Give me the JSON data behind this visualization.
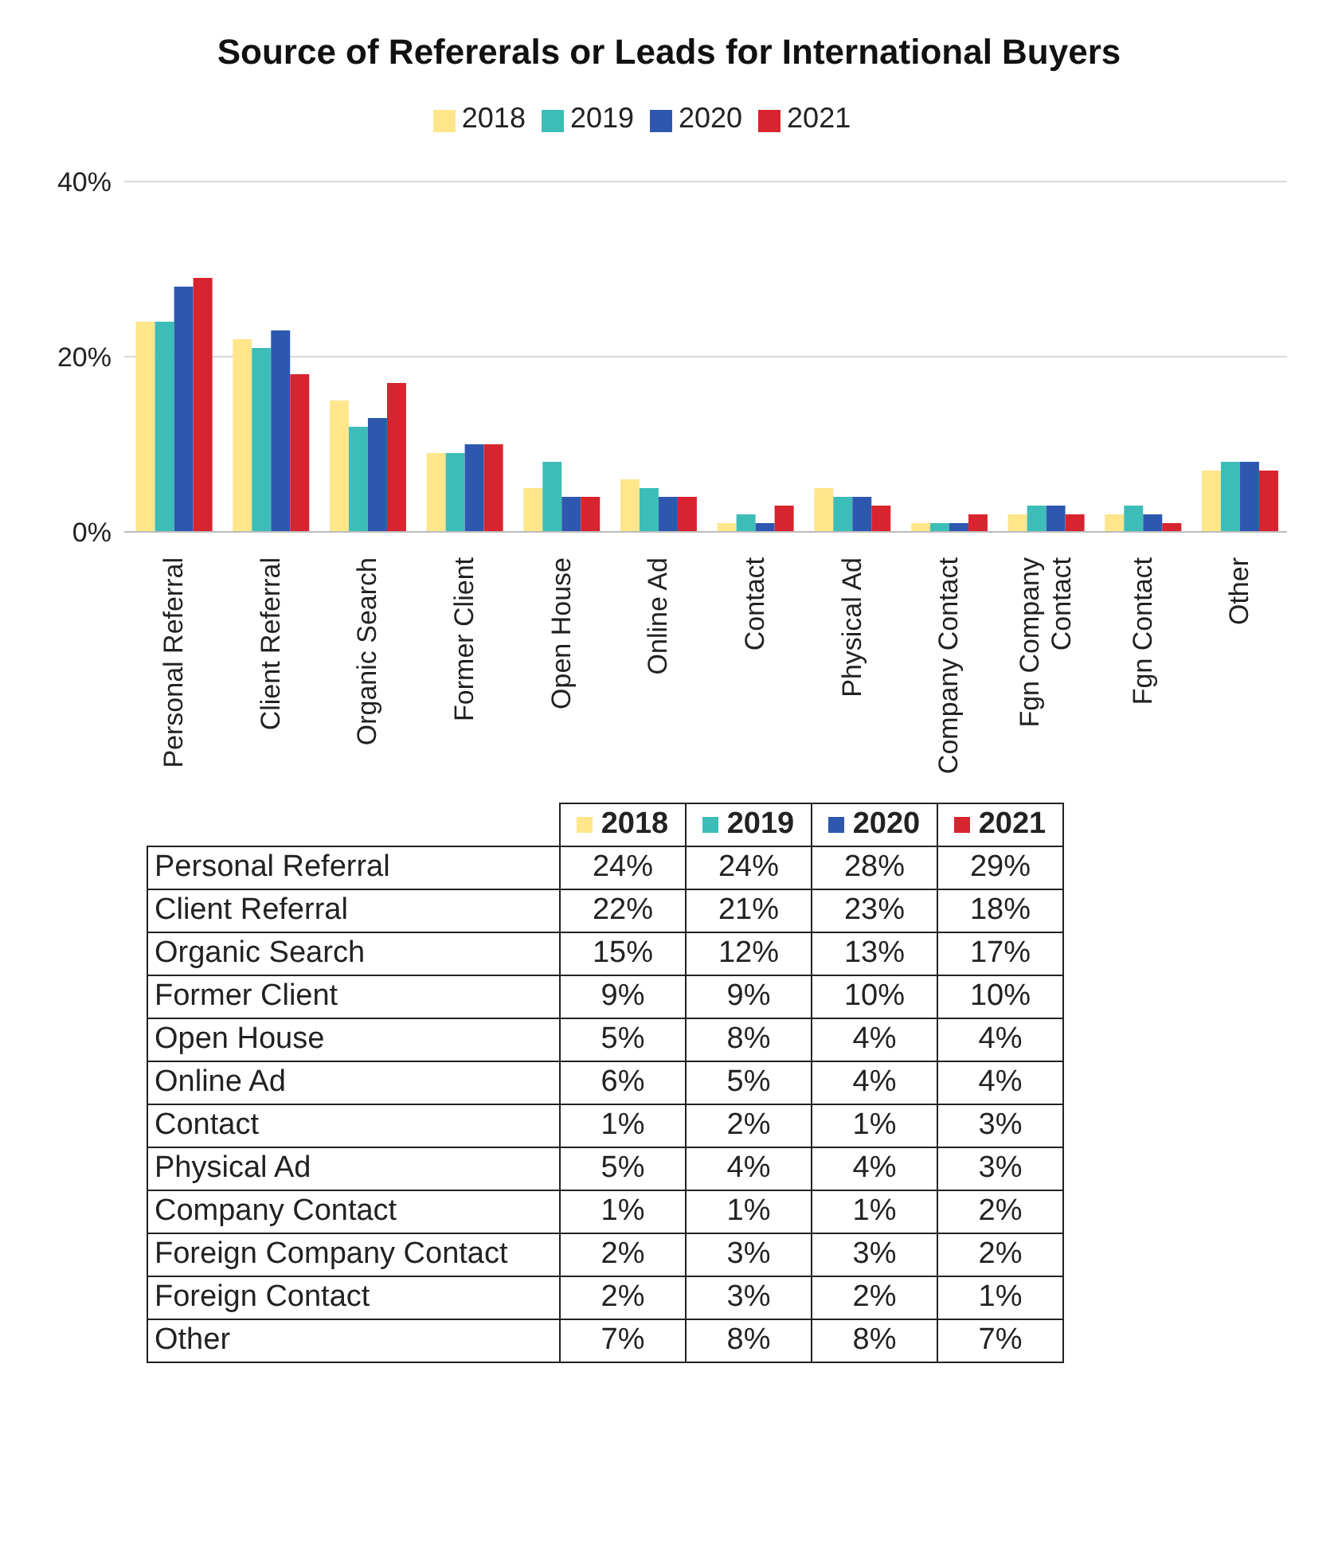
{
  "chart_data": [
    {
      "type": "bar",
      "title": "Source of Refererals or Leads for International Buyers",
      "categories": [
        "Personal Referral",
        "Client Referral",
        "Organic Search",
        "Former Client",
        "Open House",
        "Online Ad",
        "Contact",
        "Physical Ad",
        "Company Contact",
        "Fgn Company Contact",
        "Fgn Contact",
        "Other"
      ],
      "series": [
        {
          "name": "2018",
          "color": "#ffe68a",
          "values": [
            24,
            22,
            15,
            9,
            5,
            6,
            1,
            5,
            1,
            2,
            2,
            7
          ]
        },
        {
          "name": "2019",
          "color": "#3dbdb8",
          "values": [
            24,
            21,
            12,
            9,
            8,
            5,
            2,
            4,
            1,
            3,
            3,
            8
          ]
        },
        {
          "name": "2020",
          "color": "#2e58b0",
          "values": [
            28,
            23,
            13,
            10,
            4,
            4,
            1,
            4,
            1,
            3,
            2,
            8
          ]
        },
        {
          "name": "2021",
          "color": "#d7242e",
          "values": [
            29,
            18,
            17,
            10,
            4,
            4,
            3,
            3,
            2,
            2,
            1,
            7
          ]
        }
      ],
      "ylim": [
        0,
        40
      ],
      "yticks": [
        {
          "value": 0,
          "label": "0%"
        },
        {
          "value": 20,
          "label": "20%"
        },
        {
          "value": 40,
          "label": "40%"
        }
      ],
      "grid": "y",
      "legend": "top"
    },
    {
      "type": "heatmap",
      "categories": [
        "2018",
        "2019",
        "2020",
        "2021"
      ],
      "y_categories": [
        "Personal Referral",
        "Client Referral",
        "Organic Search",
        "Former Client",
        "Open House",
        "Online Ad",
        "Contact",
        "Physical Ad",
        "Company Contact",
        "Foreign Company Contact",
        "Foreign Contact",
        "Other"
      ],
      "cells": [
        [
          24,
          24,
          28,
          29
        ],
        [
          22,
          21,
          23,
          18
        ],
        [
          15,
          12,
          13,
          17
        ],
        [
          9,
          9,
          10,
          10
        ],
        [
          5,
          8,
          4,
          4
        ],
        [
          6,
          5,
          4,
          4
        ],
        [
          1,
          2,
          1,
          3
        ],
        [
          5,
          4,
          4,
          3
        ],
        [
          1,
          1,
          1,
          2
        ],
        [
          2,
          3,
          3,
          2
        ],
        [
          2,
          3,
          2,
          1
        ],
        [
          7,
          8,
          8,
          7
        ]
      ],
      "cell_labels": [
        [
          "24%",
          "24%",
          "28%",
          "29%"
        ],
        [
          "22%",
          "21%",
          "23%",
          "18%"
        ],
        [
          "15%",
          "12%",
          "13%",
          "17%"
        ],
        [
          "9%",
          "9%",
          "10%",
          "10%"
        ],
        [
          "5%",
          "8%",
          "4%",
          "4%"
        ],
        [
          "6%",
          "5%",
          "4%",
          "4%"
        ],
        [
          "1%",
          "2%",
          "1%",
          "3%"
        ],
        [
          "5%",
          "4%",
          "4%",
          "3%"
        ],
        [
          "1%",
          "1%",
          "1%",
          "2%"
        ],
        [
          "2%",
          "3%",
          "3%",
          "2%"
        ],
        [
          "2%",
          "3%",
          "2%",
          "1%"
        ],
        [
          "7%",
          "8%",
          "8%",
          "7%"
        ]
      ]
    }
  ]
}
